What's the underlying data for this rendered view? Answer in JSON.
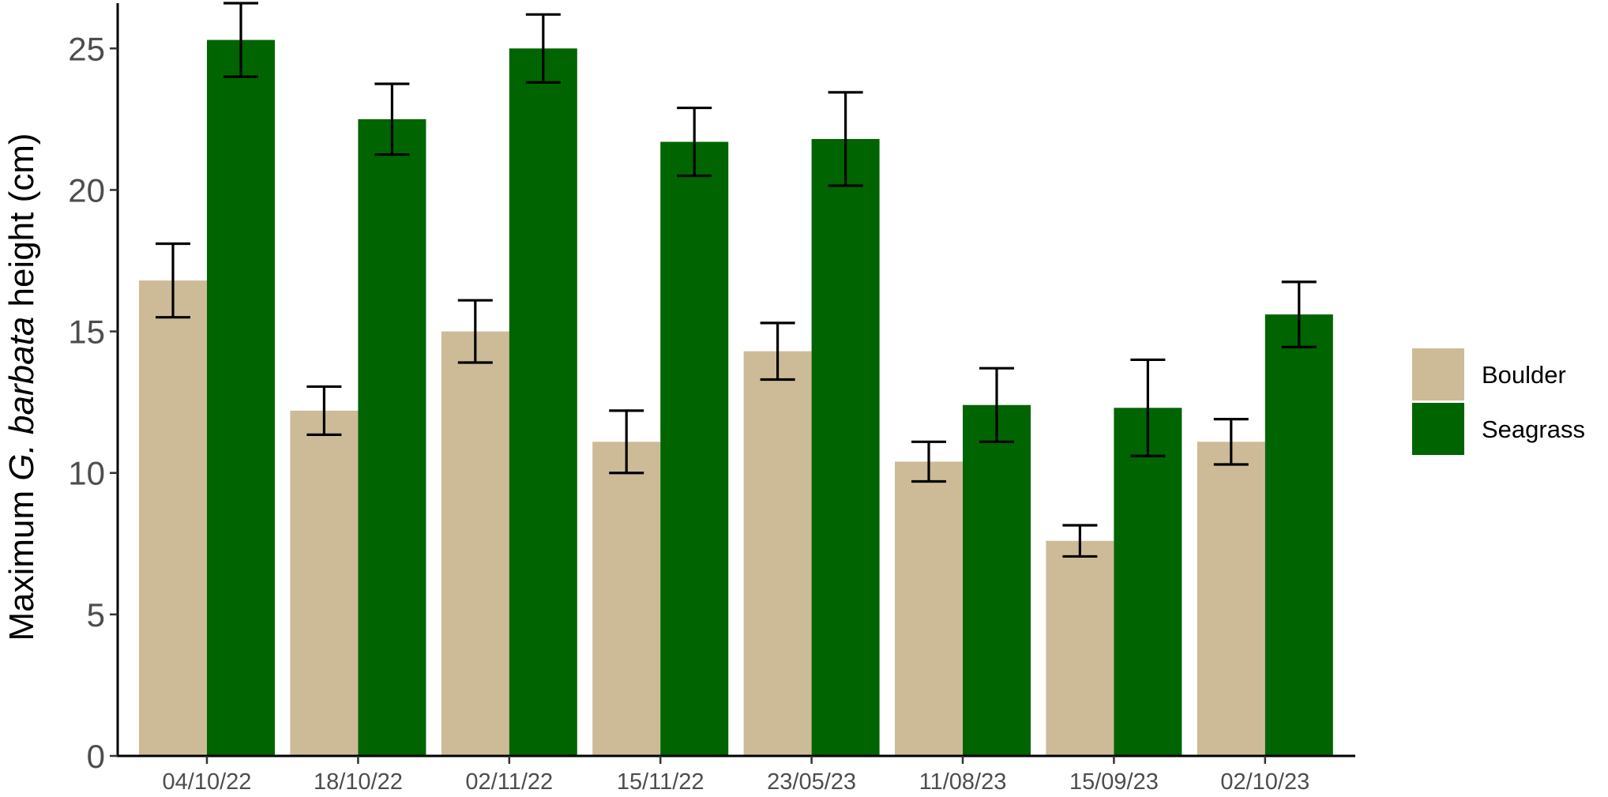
{
  "chart_data": {
    "type": "bar",
    "title": "",
    "xlabel": "",
    "ylabel": {
      "prefix": "Maximum ",
      "italic": "G. barbata",
      "suffix": " height (cm)"
    },
    "categories": [
      "04/10/22",
      "18/10/22",
      "02/11/22",
      "15/11/22",
      "23/05/23",
      "11/08/23",
      "15/09/23",
      "02/10/23"
    ],
    "series": [
      {
        "name": "Boulder",
        "color": "#cdbb98",
        "values": [
          16.8,
          12.2,
          15.0,
          11.1,
          14.3,
          10.4,
          7.6,
          11.1
        ],
        "error": [
          1.3,
          0.85,
          1.1,
          1.1,
          1.0,
          0.7,
          0.55,
          0.8
        ]
      },
      {
        "name": "Seagrass",
        "color": "#006400",
        "values": [
          25.3,
          22.5,
          25.0,
          21.7,
          21.8,
          12.4,
          12.3,
          15.6
        ],
        "error": [
          1.3,
          1.25,
          1.2,
          1.2,
          1.65,
          1.3,
          1.7,
          1.15
        ]
      }
    ],
    "ylim": [
      0,
      26.6
    ],
    "yticks": [
      0,
      5,
      10,
      15,
      20,
      25
    ],
    "grid": false,
    "legend_position": "right",
    "error_bars": true
  }
}
